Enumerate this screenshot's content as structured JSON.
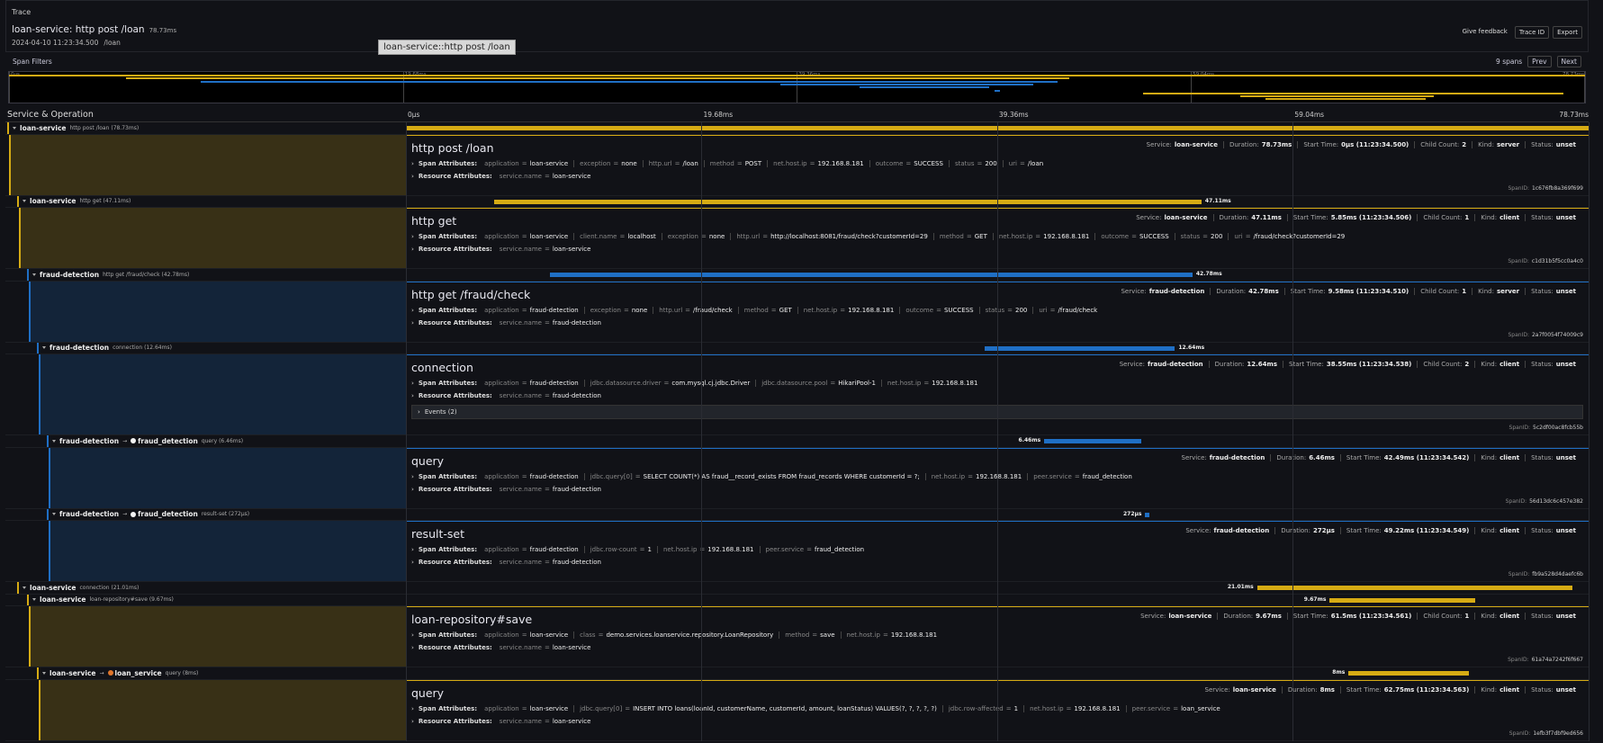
{
  "header": {
    "section": "Trace",
    "title": "loan-service: http post /loan",
    "duration": "78.73ms",
    "date": "2024-04-10 11:23:34.500",
    "path": "/loan",
    "tooltip": "loan-service::http post /loan",
    "feedback": "Give feedback",
    "trace_id": "Trace ID",
    "export": "Export"
  },
  "filters": {
    "label": "Span Filters",
    "count": "9 spans",
    "prev": "Prev",
    "next": "Next"
  },
  "column_title": "Service & Operation",
  "labels": {
    "span_attributes": "Span Attributes:",
    "resource_attributes": "Resource Attributes:",
    "service": "Service:",
    "duration": "Duration:",
    "start_time": "Start Time:",
    "child_count": "Child Count:",
    "kind": "Kind:",
    "status": "Status:",
    "span_id": "SpanID:"
  },
  "service_colors": {
    "loan-service": "#d6ab14",
    "fraud-detection": "#1f6fc5"
  },
  "timeline": {
    "range": [
      0,
      78.73
    ],
    "ticks": [
      {
        "value": 0,
        "label": "0μs"
      },
      {
        "value": 19.68,
        "label": "19.68ms"
      },
      {
        "value": 39.36,
        "label": "39.36ms"
      },
      {
        "value": 59.04,
        "label": "59.04ms"
      },
      {
        "value": 78.73,
        "label": "78.73ms"
      }
    ]
  },
  "spans": [
    {
      "service": "loan-service",
      "operation": "http post /loan",
      "depth": 0,
      "start_ms": 0,
      "duration_ms": 78.73,
      "duration_label": "78.73ms",
      "details": {
        "title": "http post /loan",
        "start_time": "0μs (11:23:34.500)",
        "child_count": "2",
        "kind": "server",
        "status": "unset",
        "attributes": [
          {
            "key": "application",
            "value": "loan-service"
          },
          {
            "key": "exception",
            "value": "none"
          },
          {
            "key": "http.url",
            "value": "/loan"
          },
          {
            "key": "method",
            "value": "POST"
          },
          {
            "key": "net.host.ip",
            "value": "192.168.8.181"
          },
          {
            "key": "outcome",
            "value": "SUCCESS"
          },
          {
            "key": "status",
            "value": "200"
          },
          {
            "key": "uri",
            "value": "/loan"
          }
        ],
        "resource": [
          {
            "key": "service.name",
            "value": "loan-service"
          }
        ],
        "span_id": "1c676fb8a369f699"
      }
    },
    {
      "service": "loan-service",
      "operation": "http get",
      "depth": 1,
      "start_ms": 5.85,
      "duration_ms": 47.11,
      "duration_label": "47.11ms",
      "details": {
        "title": "http get",
        "start_time": "5.85ms (11:23:34.506)",
        "child_count": "1",
        "kind": "client",
        "status": "unset",
        "attributes": [
          {
            "key": "application",
            "value": "loan-service"
          },
          {
            "key": "client.name",
            "value": "localhost"
          },
          {
            "key": "exception",
            "value": "none"
          },
          {
            "key": "http.url",
            "value": "http://localhost:8081/fraud/check?customerId=29"
          },
          {
            "key": "method",
            "value": "GET"
          },
          {
            "key": "net.host.ip",
            "value": "192.168.8.181"
          },
          {
            "key": "outcome",
            "value": "SUCCESS"
          },
          {
            "key": "status",
            "value": "200"
          },
          {
            "key": "uri",
            "value": "/fraud/check?customerId=29"
          }
        ],
        "resource": [
          {
            "key": "service.name",
            "value": "loan-service"
          }
        ],
        "span_id": "c1d31b5f5cc0a4c0"
      }
    },
    {
      "service": "fraud-detection",
      "operation": "http get /fraud/check",
      "depth": 2,
      "start_ms": 9.58,
      "duration_ms": 42.78,
      "duration_label": "42.78ms",
      "details": {
        "title": "http get /fraud/check",
        "start_time": "9.58ms (11:23:34.510)",
        "child_count": "1",
        "kind": "server",
        "status": "unset",
        "attributes": [
          {
            "key": "application",
            "value": "fraud-detection"
          },
          {
            "key": "exception",
            "value": "none"
          },
          {
            "key": "http.url",
            "value": "/fraud/check"
          },
          {
            "key": "method",
            "value": "GET"
          },
          {
            "key": "net.host.ip",
            "value": "192.168.8.181"
          },
          {
            "key": "outcome",
            "value": "SUCCESS"
          },
          {
            "key": "status",
            "value": "200"
          },
          {
            "key": "uri",
            "value": "/fraud/check"
          }
        ],
        "resource": [
          {
            "key": "service.name",
            "value": "fraud-detection"
          }
        ],
        "span_id": "2a7f0054f74009c9"
      }
    },
    {
      "service": "fraud-detection",
      "operation": "connection",
      "depth": 3,
      "start_ms": 38.55,
      "duration_ms": 12.64,
      "duration_label": "12.64ms",
      "details": {
        "title": "connection",
        "start_time": "38.55ms (11:23:34.538)",
        "child_count": "2",
        "kind": "client",
        "status": "unset",
        "attributes": [
          {
            "key": "application",
            "value": "fraud-detection"
          },
          {
            "key": "jdbc.datasource.driver",
            "value": "com.mysql.cj.jdbc.Driver"
          },
          {
            "key": "jdbc.datasource.pool",
            "value": "HikariPool-1"
          },
          {
            "key": "net.host.ip",
            "value": "192.168.8.181"
          }
        ],
        "resource": [
          {
            "key": "service.name",
            "value": "fraud-detection"
          }
        ],
        "events": "Events (2)",
        "span_id": "5c2df00ac8fcb55b"
      }
    },
    {
      "service": "fraud-detection",
      "peer": "fraud_detection",
      "peer_color": "#f2f2f2",
      "operation": "query",
      "depth": 4,
      "start_ms": 42.49,
      "duration_ms": 6.46,
      "duration_label": "6.46ms",
      "details": {
        "title": "query",
        "start_time": "42.49ms (11:23:34.542)",
        "kind": "client",
        "status": "unset",
        "attributes": [
          {
            "key": "application",
            "value": "fraud-detection"
          },
          {
            "key": "jdbc.query[0]",
            "value": "SELECT COUNT(*) AS fraud__record_exists FROM fraud_records WHERE customerId = ?;"
          },
          {
            "key": "net.host.ip",
            "value": "192.168.8.181"
          },
          {
            "key": "peer.service",
            "value": "fraud_detection"
          }
        ],
        "resource": [
          {
            "key": "service.name",
            "value": "fraud-detection"
          }
        ],
        "span_id": "56d13dc6c457e382"
      }
    },
    {
      "service": "fraud-detection",
      "peer": "fraud_detection",
      "peer_color": "#f2f2f2",
      "operation": "result-set",
      "depth": 4,
      "start_ms": 49.22,
      "duration_ms": 0.272,
      "duration_label": "272μs",
      "details": {
        "title": "result-set",
        "start_time": "49.22ms (11:23:34.549)",
        "kind": "client",
        "status": "unset",
        "attributes": [
          {
            "key": "application",
            "value": "fraud-detection"
          },
          {
            "key": "jdbc.row-count",
            "value": "1"
          },
          {
            "key": "net.host.ip",
            "value": "192.168.8.181"
          },
          {
            "key": "peer.service",
            "value": "fraud_detection"
          }
        ],
        "resource": [
          {
            "key": "service.name",
            "value": "fraud-detection"
          }
        ],
        "span_id": "fb9a528d4daefc6b"
      }
    },
    {
      "service": "loan-service",
      "operation": "connection",
      "depth": 1,
      "start_ms": 56.66,
      "duration_ms": 21.01,
      "duration_label": "21.01ms"
    },
    {
      "service": "loan-service",
      "operation": "loan-repository#save",
      "depth": 2,
      "start_ms": 61.5,
      "duration_ms": 9.67,
      "duration_label": "9.67ms",
      "details": {
        "title": "loan-repository#save",
        "start_time": "61.5ms (11:23:34.561)",
        "child_count": "1",
        "kind": "client",
        "status": "unset",
        "attributes": [
          {
            "key": "application",
            "value": "loan-service"
          },
          {
            "key": "class",
            "value": "demo.services.loanservice.repository.LoanRepository"
          },
          {
            "key": "method",
            "value": "save"
          },
          {
            "key": "net.host.ip",
            "value": "192.168.8.181"
          }
        ],
        "resource": [
          {
            "key": "service.name",
            "value": "loan-service"
          }
        ],
        "span_id": "61a74a7242f6f667"
      }
    },
    {
      "service": "loan-service",
      "peer": "loan_service",
      "peer_color": "#e0752a",
      "operation": "query",
      "depth": 3,
      "start_ms": 62.75,
      "duration_ms": 8,
      "duration_label": "8ms",
      "details": {
        "title": "query",
        "start_time": "62.75ms (11:23:34.563)",
        "kind": "client",
        "status": "unset",
        "attributes": [
          {
            "key": "application",
            "value": "loan-service"
          },
          {
            "key": "jdbc.query[0]",
            "value": "INSERT INTO loans(loanId, customerName, customerId, amount, loanStatus) VALUES(?, ?, ?, ?, ?)"
          },
          {
            "key": "jdbc.row-affected",
            "value": "1"
          },
          {
            "key": "net.host.ip",
            "value": "192.168.8.181"
          },
          {
            "key": "peer.service",
            "value": "loan_service"
          }
        ],
        "resource": [
          {
            "key": "service.name",
            "value": "loan-service"
          }
        ],
        "span_id": "1efb3f7dbf9ed656"
      }
    }
  ]
}
